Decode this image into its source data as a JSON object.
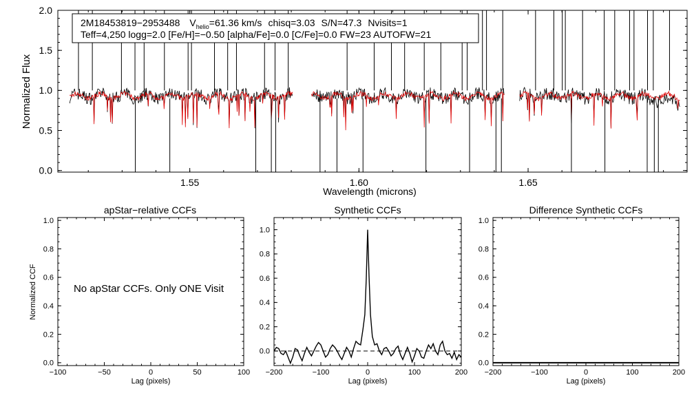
{
  "chart_data": [
    {
      "type": "line",
      "id": "spectrum",
      "xlabel": "Wavelength (microns)",
      "ylabel": "Normalized Flux",
      "xlim": [
        1.511,
        1.697
      ],
      "ylim": [
        -0.02,
        2.0
      ],
      "xticks": [
        1.55,
        1.6,
        1.65
      ],
      "xtick_labels": [
        "1.55",
        "1.60",
        "1.65"
      ],
      "yticks": [
        0.0,
        0.5,
        1.0,
        1.5,
        2.0
      ],
      "ytick_labels": [
        "0.0",
        "0.5",
        "1.0",
        "1.5",
        "2.0"
      ],
      "info_line1": {
        "star": "2M18453819−2953488",
        "v_prefix": "V",
        "v_sub": "helio",
        "v_value": "=61.36 km/s",
        "chisq": "chisq=3.03",
        "sn": "S/N=47.3",
        "nvisits": "Nvisits=1"
      },
      "info_line2": "Teff=4,250 logg=2.0 [Fe/H]=−0.50 [alpha/Fe]=0.0 [C/Fe]=0.0 FW=23 AUTOFW=21",
      "chips": [
        [
          1.5145,
          1.5805
        ],
        [
          1.586,
          1.643
        ],
        [
          1.6475,
          1.695
        ]
      ],
      "series": [
        {
          "name": "observed",
          "color": "#000000"
        },
        {
          "name": "synthetic",
          "color": "#e00000"
        }
      ],
      "spikes_up": [
        1.5171,
        1.5212,
        1.5298,
        1.5338,
        1.5365,
        1.5425,
        1.5495,
        1.5505,
        1.5573,
        1.5612,
        1.5638,
        1.5721,
        1.5752,
        1.5791,
        1.5965,
        1.6045,
        1.6096,
        1.6135,
        1.6193,
        1.6242,
        1.6305,
        1.632,
        1.6365,
        1.6377,
        1.6425,
        1.6522,
        1.6576,
        1.6601,
        1.661,
        1.6661,
        1.6725,
        1.6756,
        1.68,
        1.6813,
        1.6853,
        1.687,
        1.6918
      ],
      "spikes_down": [
        1.5339,
        1.5441,
        1.5695,
        1.5741,
        1.5754,
        1.5885,
        1.5935,
        1.6012,
        1.6198,
        1.6327,
        1.6405,
        1.6421,
        1.6628,
        1.6727,
        1.6852,
        1.6873,
        1.6885
      ]
    },
    {
      "type": "line",
      "id": "apstar_ccf",
      "title": "apStar−relative CCFs",
      "xlabel": "Lag (pixels)",
      "ylabel": "Normalized CCF",
      "xlim": [
        -100,
        100
      ],
      "ylim": [
        -0.02,
        1.02
      ],
      "xticks": [
        -100,
        -50,
        0,
        50,
        100
      ],
      "xtick_labels": [
        "−100",
        "−50",
        "0",
        "50",
        "100"
      ],
      "yticks": [
        0.0,
        0.2,
        0.4,
        0.6,
        0.8,
        1.0
      ],
      "ytick_labels": [
        "0.0",
        "0.2",
        "0.4",
        "0.6",
        "0.8",
        "1.0"
      ],
      "message": "No apStar CCFs.  Only ONE Visit"
    },
    {
      "type": "line",
      "id": "synthetic_ccf",
      "title": "Synthetic CCFs",
      "xlabel": "Lag (pixels)",
      "ylabel": "",
      "xlim": [
        -200,
        200
      ],
      "ylim": [
        -0.12,
        1.1
      ],
      "xticks": [
        -200,
        -100,
        0,
        100,
        200
      ],
      "xtick_labels": [
        "−200",
        "−100",
        "0",
        "100",
        "200"
      ],
      "yticks": [
        0.0,
        0.2,
        0.4,
        0.6,
        0.8,
        1.0
      ],
      "ytick_labels": [
        "0.0",
        "0.2",
        "0.4",
        "0.6",
        "0.8",
        "1.0"
      ],
      "baseline": 0.0,
      "x": [
        -200,
        -195,
        -190,
        -185,
        -180,
        -175,
        -170,
        -165,
        -160,
        -155,
        -150,
        -145,
        -140,
        -135,
        -130,
        -125,
        -120,
        -115,
        -110,
        -105,
        -100,
        -95,
        -90,
        -85,
        -80,
        -75,
        -70,
        -65,
        -60,
        -55,
        -50,
        -45,
        -40,
        -35,
        -30,
        -25,
        -20,
        -15,
        -10,
        -6,
        -3,
        0,
        3,
        6,
        10,
        15,
        20,
        25,
        30,
        35,
        40,
        45,
        50,
        55,
        60,
        65,
        70,
        75,
        80,
        85,
        90,
        95,
        100,
        105,
        110,
        115,
        120,
        125,
        130,
        135,
        140,
        145,
        150,
        155,
        160,
        165,
        170,
        175,
        180,
        185,
        190,
        195,
        200
      ],
      "y": [
        0.0,
        0.03,
        0.02,
        -0.02,
        -0.03,
        0.0,
        -0.05,
        -0.1,
        -0.05,
        0.02,
        0.01,
        -0.04,
        -0.08,
        -0.02,
        0.03,
        -0.01,
        -0.04,
        0.0,
        0.04,
        0.07,
        0.05,
        0.0,
        -0.05,
        -0.03,
        0.02,
        0.05,
        0.03,
        0.0,
        -0.04,
        -0.07,
        -0.02,
        0.03,
        0.0,
        -0.05,
        0.02,
        0.08,
        0.06,
        0.05,
        0.18,
        0.3,
        0.6,
        1.0,
        0.62,
        0.3,
        0.12,
        0.05,
        0.06,
        0.0,
        -0.03,
        0.02,
        0.03,
        0.0,
        -0.04,
        -0.02,
        0.02,
        0.04,
        -0.03,
        -0.07,
        -0.02,
        0.03,
        -0.02,
        -0.09,
        -0.04,
        0.02,
        0.0,
        -0.05,
        -0.06,
        0.0,
        0.05,
        0.02,
        0.06,
        0.0,
        -0.03,
        0.05,
        0.08,
        0.0,
        -0.03,
        -0.02,
        -0.06,
        -0.01,
        -0.07,
        -0.03,
        -0.05
      ]
    },
    {
      "type": "line",
      "id": "difference_ccf",
      "title": "Difference Synthetic CCFs",
      "xlabel": "Lag (pixels)",
      "ylabel": "",
      "xlim": [
        -200,
        200
      ],
      "ylim": [
        -0.02,
        1.02
      ],
      "xticks": [
        -200,
        -100,
        0,
        100,
        200
      ],
      "xtick_labels": [
        "−200",
        "−100",
        "0",
        "100",
        "200"
      ],
      "yticks": [
        0.0,
        0.2,
        0.4,
        0.6,
        0.8,
        1.0
      ],
      "ytick_labels": [
        "0.0",
        "0.2",
        "0.4",
        "0.6",
        "0.8",
        "1.0"
      ],
      "x": [
        -200,
        200
      ],
      "y": [
        0.0,
        0.0
      ]
    }
  ]
}
